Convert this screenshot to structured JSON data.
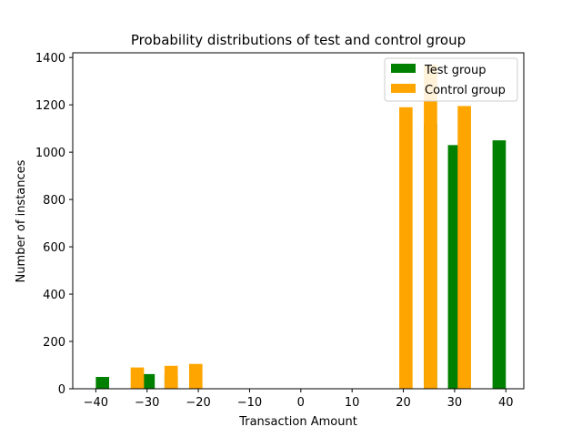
{
  "chart_data": {
    "type": "bar",
    "title": "Probability distributions of test and control group",
    "xlabel": "Transaction Amount",
    "ylabel": "Number of instances",
    "xlim": [
      -44.5,
      43.5
    ],
    "ylim": [
      0,
      1420
    ],
    "xticks": [
      -40,
      -30,
      -20,
      -10,
      0,
      10,
      20,
      30,
      40
    ],
    "yticks": [
      0,
      200,
      400,
      600,
      800,
      1000,
      1200,
      1400
    ],
    "grid": false,
    "legend_position": "top-right",
    "bar_width": 2.6,
    "series": [
      {
        "name": "Test group",
        "color": "#008000",
        "bars": [
          {
            "x": -38.7,
            "y": 50
          },
          {
            "x": -29.8,
            "y": 62
          },
          {
            "x": -25.3,
            "y": 58
          },
          {
            "x": 25.3,
            "y": 1120
          },
          {
            "x": 30.0,
            "y": 1030
          },
          {
            "x": 38.7,
            "y": 1050
          }
        ]
      },
      {
        "name": "Control group",
        "color": "#FFA500",
        "bars": [
          {
            "x": -31.9,
            "y": 90
          },
          {
            "x": -25.3,
            "y": 97
          },
          {
            "x": -20.5,
            "y": 105
          },
          {
            "x": 20.5,
            "y": 1190
          },
          {
            "x": 25.3,
            "y": 1370
          },
          {
            "x": 31.9,
            "y": 1195
          }
        ]
      }
    ]
  }
}
